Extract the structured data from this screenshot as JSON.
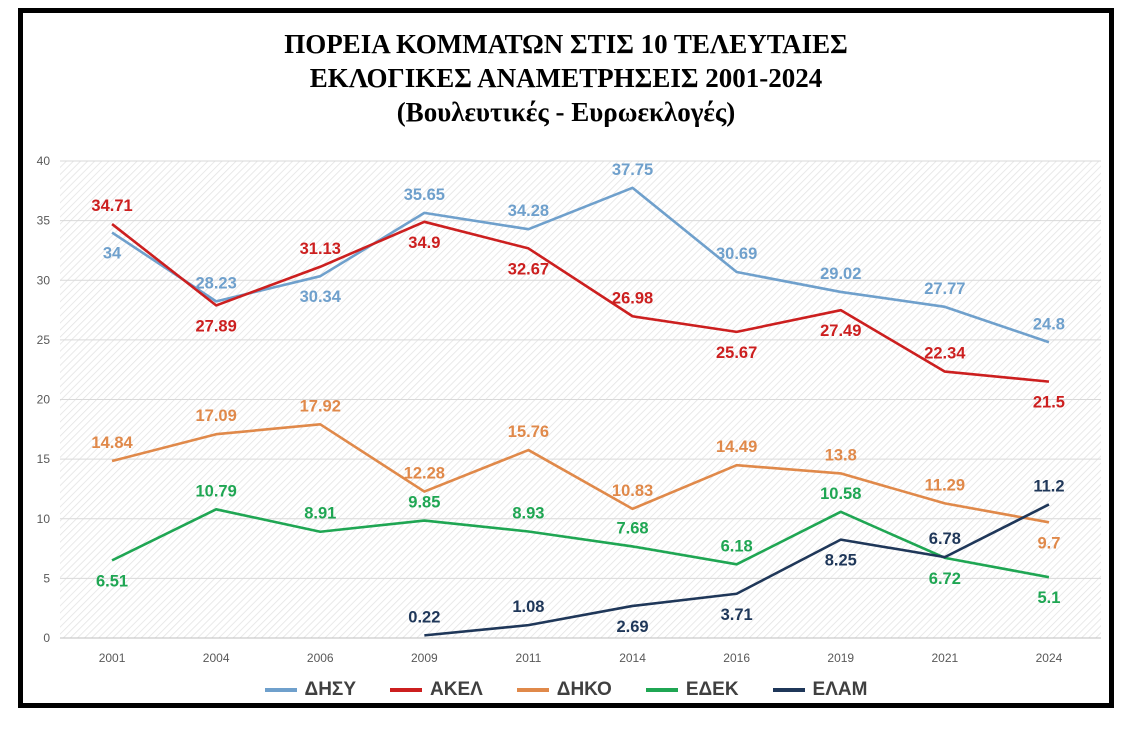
{
  "chart_data": {
    "type": "line",
    "title_lines": [
      "ΠΟΡΕΙΑ ΚΟΜΜΑΤΩΝ ΣΤΙΣ 10 ΤΕΛΕΥΤΑΙΕΣ",
      "ΕΚΛΟΓΙΚΕΣ ΑΝΑΜΕΤΡΗΣΕΙΣ 2001-2024"
    ],
    "subtitle": "(Βουλευτικές - Ευρωεκλογές)",
    "categories": [
      "2001",
      "2004",
      "2006",
      "2009",
      "2011",
      "2014",
      "2016",
      "2019",
      "2021",
      "2024"
    ],
    "ylim": [
      0,
      40
    ],
    "yticks": [
      0,
      5,
      10,
      15,
      20,
      25,
      30,
      35,
      40
    ],
    "grid": true,
    "legend_position": "bottom",
    "series": [
      {
        "name": "ΔΗΣΥ",
        "color": "#6fa0cc",
        "values": [
          34,
          28.23,
          30.34,
          35.65,
          34.28,
          37.75,
          30.69,
          29.02,
          27.77,
          24.8
        ],
        "label_pos": [
          "below",
          "above",
          "below",
          "above",
          "above",
          "above",
          "above",
          "above",
          "above",
          "above"
        ]
      },
      {
        "name": "ΑΚΕΛ",
        "color": "#cc1f1f",
        "values": [
          34.71,
          27.89,
          31.13,
          34.9,
          32.67,
          26.98,
          25.67,
          27.49,
          22.34,
          21.5
        ],
        "label_pos": [
          "above",
          "below",
          "above",
          "below",
          "below",
          "above",
          "below",
          "below",
          "above",
          "below"
        ]
      },
      {
        "name": "ΔΗΚΟ",
        "color": "#e0894a",
        "values": [
          14.84,
          17.09,
          17.92,
          12.28,
          15.76,
          10.83,
          14.49,
          13.8,
          11.29,
          9.7
        ],
        "label_pos": [
          "above",
          "above",
          "above",
          "above",
          "above",
          "above",
          "above",
          "above",
          "above",
          "below"
        ]
      },
      {
        "name": "ΕΔΕΚ",
        "color": "#1fa653",
        "values": [
          6.51,
          10.79,
          8.91,
          9.85,
          8.93,
          7.68,
          6.18,
          10.58,
          6.72,
          5.1
        ],
        "label_pos": [
          "below",
          "above",
          "above",
          "above",
          "above",
          "above",
          "above",
          "above",
          "below",
          "below"
        ]
      },
      {
        "name": "ΕΛΑΜ",
        "color": "#1f3759",
        "values": [
          null,
          null,
          null,
          0.22,
          1.08,
          2.69,
          3.71,
          8.25,
          6.78,
          11.2
        ],
        "label_pos": [
          "",
          "",
          "",
          "above",
          "above",
          "below",
          "below",
          "below",
          "above",
          "above"
        ]
      }
    ]
  }
}
